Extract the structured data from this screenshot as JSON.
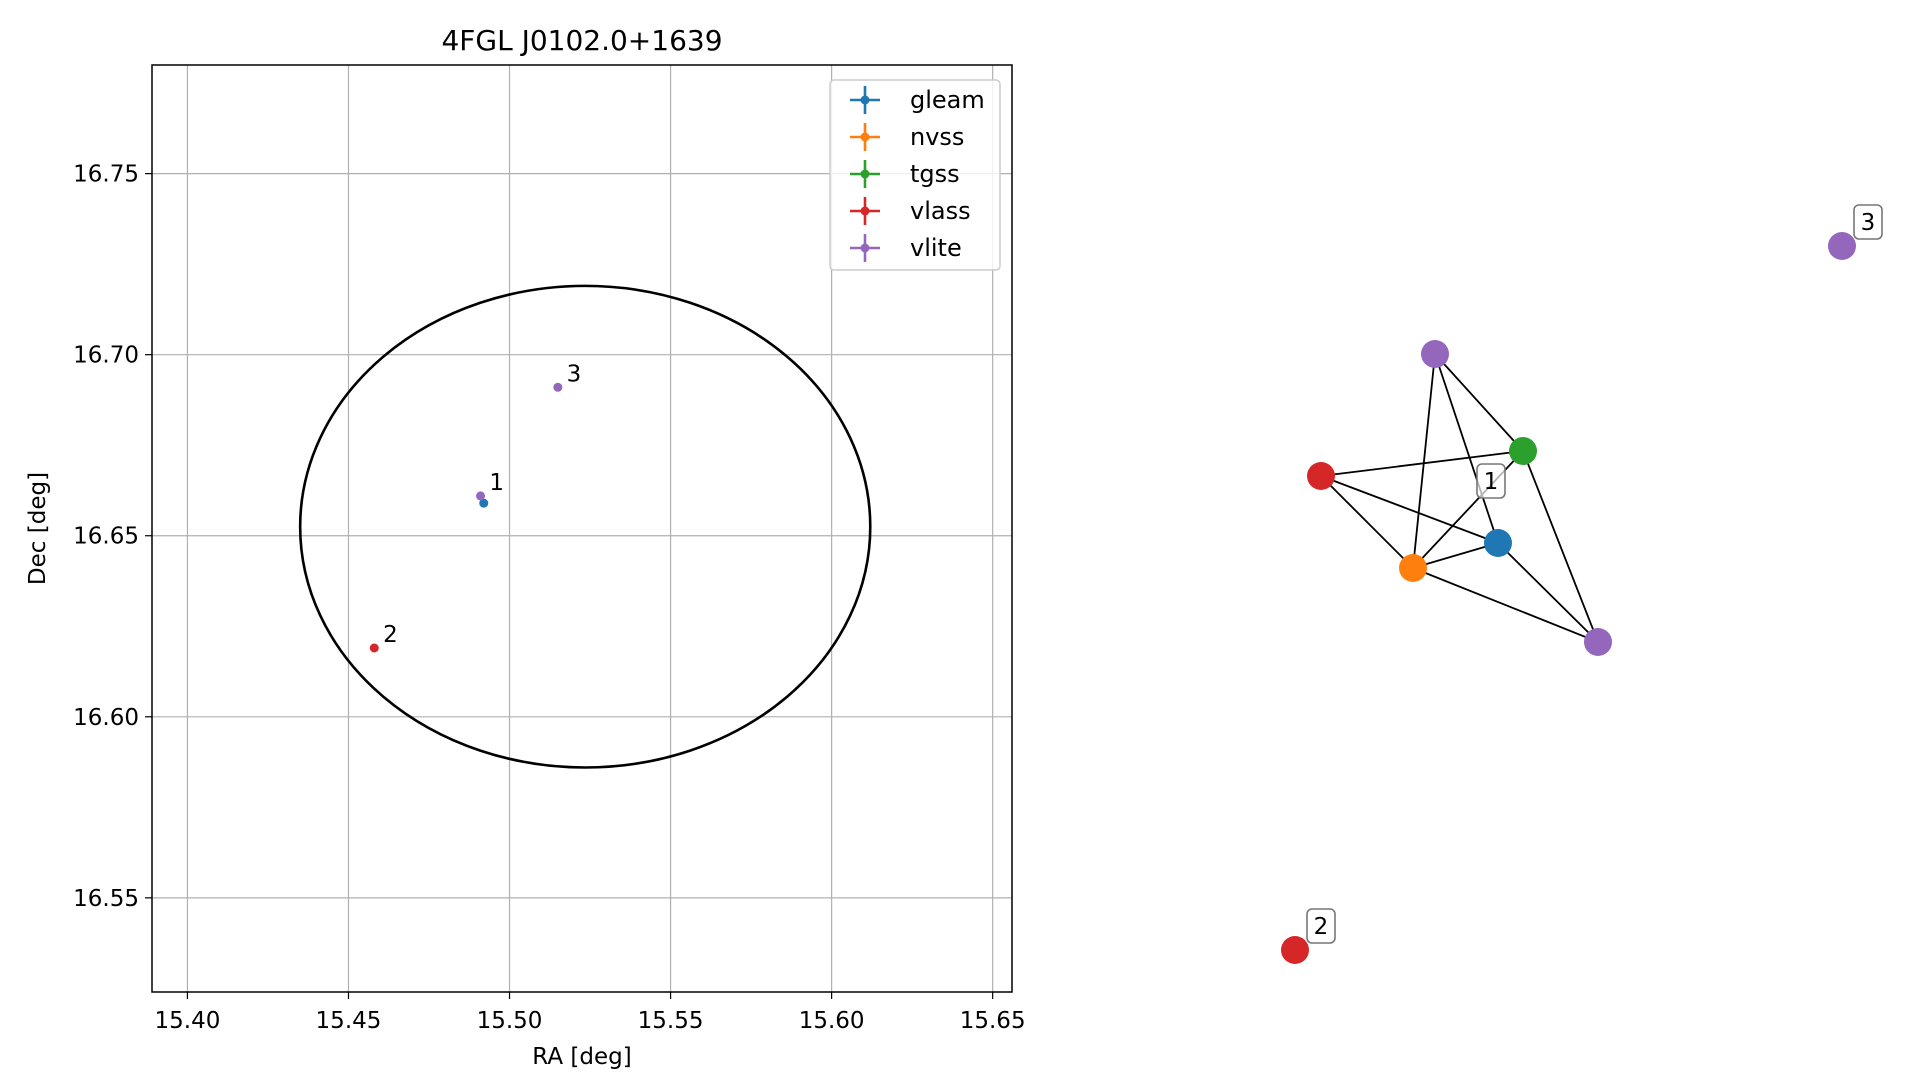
{
  "chart_data": [
    {
      "type": "scatter",
      "title": "4FGL J0102.0+1639",
      "xlabel": "RA [deg]",
      "ylabel": "Dec [deg]",
      "xlim": [
        15.389,
        15.656
      ],
      "ylim": [
        16.524,
        16.78
      ],
      "xticks": [
        "15.40",
        "15.45",
        "15.50",
        "15.55",
        "15.60",
        "15.65"
      ],
      "yticks": [
        "16.55",
        "16.60",
        "16.65",
        "16.70",
        "16.75"
      ],
      "grid": true,
      "legend_position": "top-right",
      "series": [
        {
          "name": "gleam",
          "color": "#1f77b4",
          "points": [
            {
              "x": 15.492,
              "y": 16.659
            }
          ]
        },
        {
          "name": "nvss",
          "color": "#ff7f0e",
          "points": []
        },
        {
          "name": "tgss",
          "color": "#2ca02c",
          "points": []
        },
        {
          "name": "vlass",
          "color": "#d62728",
          "points": [
            {
              "x": 15.458,
              "y": 16.619
            }
          ]
        },
        {
          "name": "vlite",
          "color": "#9467bd",
          "points": [
            {
              "x": 15.491,
              "y": 16.661
            },
            {
              "x": 15.515,
              "y": 16.691
            }
          ]
        }
      ],
      "ellipse": {
        "center": [
          15.5235,
          16.6525
        ],
        "semi_axis_ra": 0.0885,
        "semi_axis_dec": 0.0665,
        "color": "#000000"
      },
      "annotations": [
        {
          "text": "1",
          "x": 15.4925,
          "y": 16.6615
        },
        {
          "text": "2",
          "x": 15.4595,
          "y": 16.6195
        },
        {
          "text": "3",
          "x": 15.5165,
          "y": 16.6915
        }
      ]
    },
    {
      "type": "network",
      "nodes": [
        {
          "id": "n1",
          "color": "#9467bd"
        },
        {
          "id": "n2",
          "color": "#2ca02c"
        },
        {
          "id": "n3",
          "color": "#d62728"
        },
        {
          "id": "n4",
          "color": "#1f77b4"
        },
        {
          "id": "n5",
          "color": "#ff7f0e"
        },
        {
          "id": "n6",
          "color": "#9467bd"
        },
        {
          "id": "n7",
          "color": "#9467bd"
        },
        {
          "id": "n8",
          "color": "#d62728"
        }
      ],
      "edges": [
        [
          "n1",
          "n2"
        ],
        [
          "n1",
          "n4"
        ],
        [
          "n1",
          "n5"
        ],
        [
          "n3",
          "n2"
        ],
        [
          "n3",
          "n4"
        ],
        [
          "n3",
          "n5"
        ],
        [
          "n2",
          "n5"
        ],
        [
          "n2",
          "n6"
        ],
        [
          "n4",
          "n5"
        ],
        [
          "n4",
          "n6"
        ],
        [
          "n5",
          "n6"
        ]
      ],
      "labels": [
        {
          "text": "1",
          "near": "n4"
        },
        {
          "text": "2",
          "near": "n8"
        },
        {
          "text": "3",
          "near": "n7"
        }
      ]
    }
  ]
}
